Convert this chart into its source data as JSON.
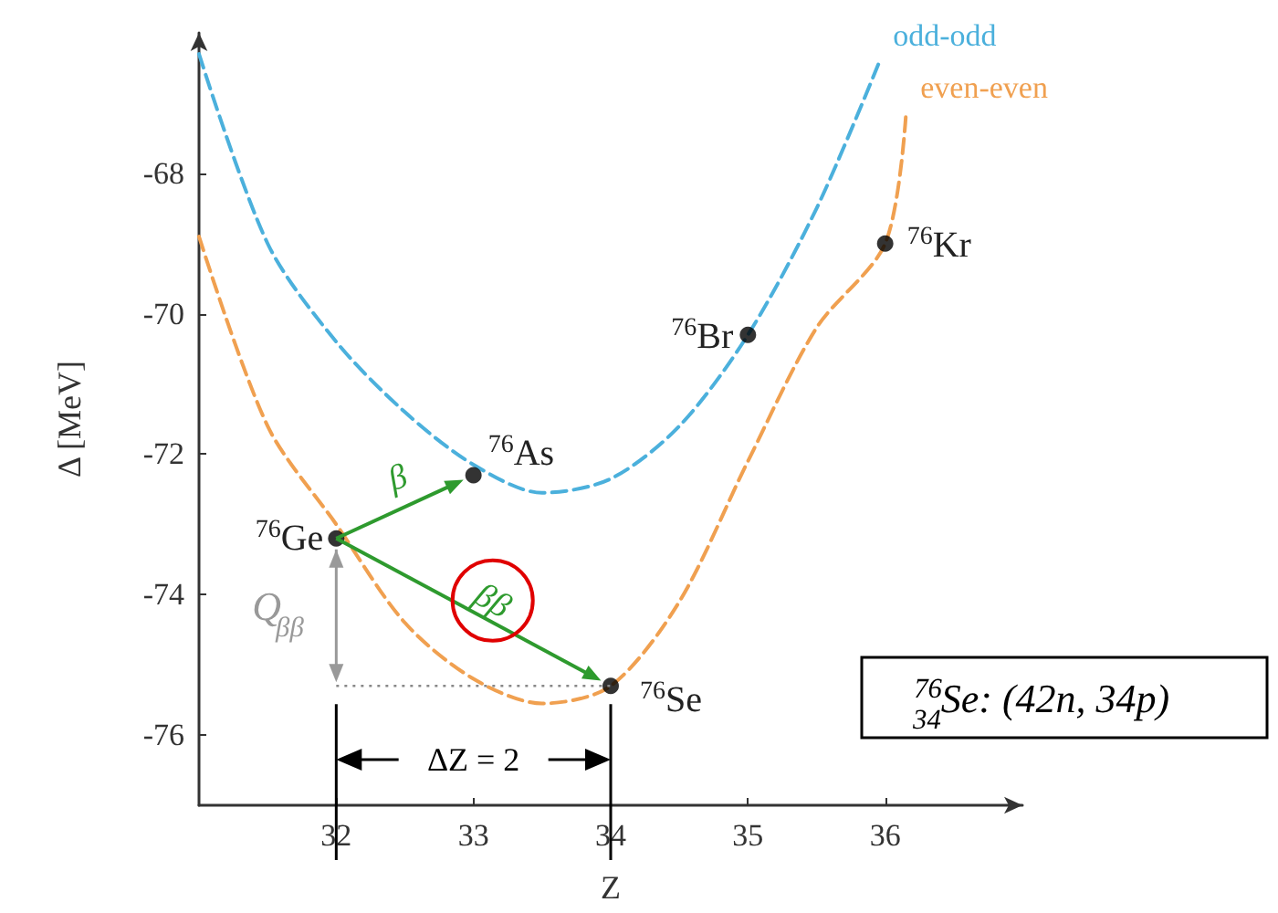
{
  "chart_data": {
    "type": "line",
    "xlabel": "Z",
    "ylabel": "Δ [MeV]",
    "xlim": [
      31,
      37
    ],
    "ylim": [
      -77,
      -66
    ],
    "xticks": [
      32,
      33,
      34,
      35,
      36
    ],
    "yticks": [
      -68,
      -70,
      -72,
      -74,
      -76
    ],
    "grid": false,
    "legend": false,
    "line_style": "dashed",
    "marker": "none",
    "series": [
      {
        "name": "odd-odd",
        "color": "#4bb0dc",
        "x": [
          31,
          31.5,
          32,
          32.5,
          33,
          33.5,
          34,
          34.5,
          35,
          35.5,
          35.95
        ],
        "values": [
          -66.3,
          -69.0,
          -70.4,
          -71.4,
          -72.15,
          -72.55,
          -72.35,
          -71.6,
          -70.3,
          -68.5,
          -66.45
        ]
      },
      {
        "name": "even-even",
        "color": "#f0a050",
        "x": [
          31,
          31.5,
          32,
          32.5,
          33,
          33.5,
          34,
          34.5,
          35,
          35.5,
          36,
          36.15
        ],
        "values": [
          -68.9,
          -71.6,
          -73.0,
          -74.4,
          -75.2,
          -75.55,
          -75.3,
          -74.1,
          -72.1,
          -70.2,
          -69.0,
          -67.2
        ]
      },
      {
        "type": "scatter",
        "marker": "circle",
        "color": "#000000",
        "x": [
          32,
          33,
          35,
          36,
          34
        ],
        "values": [
          -73.2,
          -72.3,
          -70.3,
          -69.0,
          -75.3
        ]
      }
    ],
    "annotations": [
      {
        "text": "$^{76}$Ge",
        "x": 32,
        "y": -73.2
      },
      {
        "text": "$^{76}$As",
        "x": 33,
        "y": -72.3
      },
      {
        "text": "$^{76}$Br",
        "x": 35,
        "y": -70.3
      },
      {
        "text": "$^{76}$Kr",
        "x": 36,
        "y": -69.0
      },
      {
        "text": "$^{76}$Se",
        "x": 34,
        "y": -75.3
      },
      {
        "text": "β",
        "x": 33,
        "y": -72.3
      },
      "ββ",
      "Q$_{ββ}$",
      "ΔZ = 2",
      "$^{76}$$_{34}$Se: (42n, 34p)"
    ]
  }
}
